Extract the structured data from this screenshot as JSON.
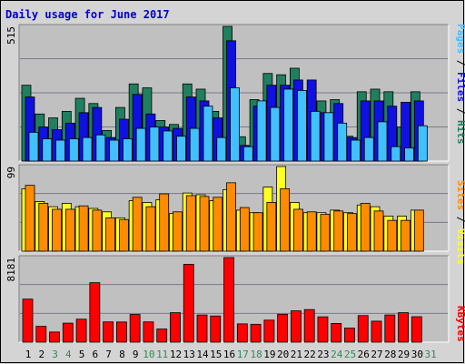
{
  "title": "Daily usage for June 2017",
  "colors": {
    "hits": "#1f7f5f",
    "files": "#1010e0",
    "pages": "#40c0ff",
    "visits": "#ffff20",
    "sites": "#ff8c00",
    "kbytes": "#ff0000",
    "weekend_label": "#2e8b57",
    "weekday_label": "#000000",
    "title": "#0000cc",
    "panel_bg": "#c0c0c0",
    "frame_bg": "#d4d4d4"
  },
  "side_labels": {
    "pages": "Pages",
    "files": "Files",
    "hits": "Hits",
    "sites": "Sites",
    "visits": "Visits",
    "kbytes": "KBytes",
    "sep": " / "
  },
  "chart_data": [
    {
      "type": "bar",
      "panel": "hits-files-pages",
      "categories": [
        "1",
        "2",
        "3",
        "4",
        "5",
        "6",
        "7",
        "8",
        "9",
        "10",
        "11",
        "12",
        "13",
        "14",
        "15",
        "16",
        "17",
        "18",
        "19",
        "20",
        "21",
        "22",
        "23",
        "24",
        "25",
        "26",
        "27",
        "28",
        "29",
        "30",
        "31"
      ],
      "weekend_days": [
        "3",
        "4",
        "10",
        "11",
        "17",
        "18",
        "24",
        "25",
        "31"
      ],
      "ymax_label": "515",
      "ylim": [
        0,
        515
      ],
      "series": [
        {
          "name": "Hits",
          "values": [
            290,
            180,
            165,
            190,
            240,
            220,
            117,
            205,
            295,
            280,
            155,
            140,
            295,
            275,
            190,
            515,
            93,
            235,
            335,
            330,
            355,
            130,
            230,
            235,
            95,
            265,
            275,
            265,
            130,
            265,
            0
          ]
        },
        {
          "name": "Files",
          "values": [
            245,
            130,
            120,
            145,
            185,
            205,
            90,
            160,
            255,
            180,
            130,
            125,
            245,
            230,
            165,
            460,
            60,
            210,
            290,
            290,
            310,
            310,
            185,
            220,
            90,
            230,
            230,
            210,
            225,
            230,
            0
          ]
        },
        {
          "name": "Pages",
          "values": [
            110,
            85,
            80,
            85,
            90,
            100,
            80,
            85,
            125,
            130,
            115,
            95,
            125,
            210,
            90,
            280,
            55,
            230,
            205,
            275,
            270,
            190,
            185,
            145,
            80,
            90,
            150,
            55,
            50,
            135,
            0
          ]
        }
      ]
    },
    {
      "type": "bar",
      "panel": "visits-sites",
      "categories": [
        "1",
        "2",
        "3",
        "4",
        "5",
        "6",
        "7",
        "8",
        "9",
        "10",
        "11",
        "12",
        "13",
        "14",
        "15",
        "16",
        "17",
        "18",
        "19",
        "20",
        "21",
        "22",
        "23",
        "24",
        "25",
        "26",
        "27",
        "28",
        "29",
        "30",
        "31"
      ],
      "ymax_label": "99",
      "ylim": [
        0,
        99
      ],
      "series": [
        {
          "name": "Visits",
          "values": [
            73,
            58,
            52,
            56,
            52,
            50,
            46,
            39,
            59,
            57,
            60,
            44,
            68,
            66,
            59,
            72,
            48,
            45,
            75,
            99,
            57,
            45,
            45,
            48,
            45,
            54,
            52,
            41,
            41,
            48,
            0
          ]
        },
        {
          "name": "Sites",
          "values": [
            77,
            56,
            49,
            49,
            53,
            48,
            39,
            37,
            63,
            52,
            67,
            46,
            65,
            64,
            63,
            80,
            51,
            45,
            57,
            73,
            49,
            46,
            43,
            47,
            44,
            56,
            47,
            36,
            36,
            48,
            0
          ]
        }
      ]
    },
    {
      "type": "bar",
      "panel": "kbytes",
      "categories": [
        "1",
        "2",
        "3",
        "4",
        "5",
        "6",
        "7",
        "8",
        "9",
        "10",
        "11",
        "12",
        "13",
        "14",
        "15",
        "16",
        "17",
        "18",
        "19",
        "20",
        "21",
        "22",
        "23",
        "24",
        "25",
        "26",
        "27",
        "28",
        "29",
        "30",
        "31"
      ],
      "ymax_label": "8181",
      "ylim": [
        0,
        8181
      ],
      "series": [
        {
          "name": "KBytes",
          "values": [
            4160,
            1530,
            980,
            1840,
            2220,
            5750,
            1960,
            1950,
            2680,
            1960,
            1270,
            2850,
            7530,
            2630,
            2530,
            8181,
            1770,
            1730,
            2130,
            2700,
            3030,
            3150,
            2450,
            1810,
            1360,
            2570,
            2030,
            2630,
            2850,
            2460,
            0
          ]
        }
      ]
    }
  ]
}
